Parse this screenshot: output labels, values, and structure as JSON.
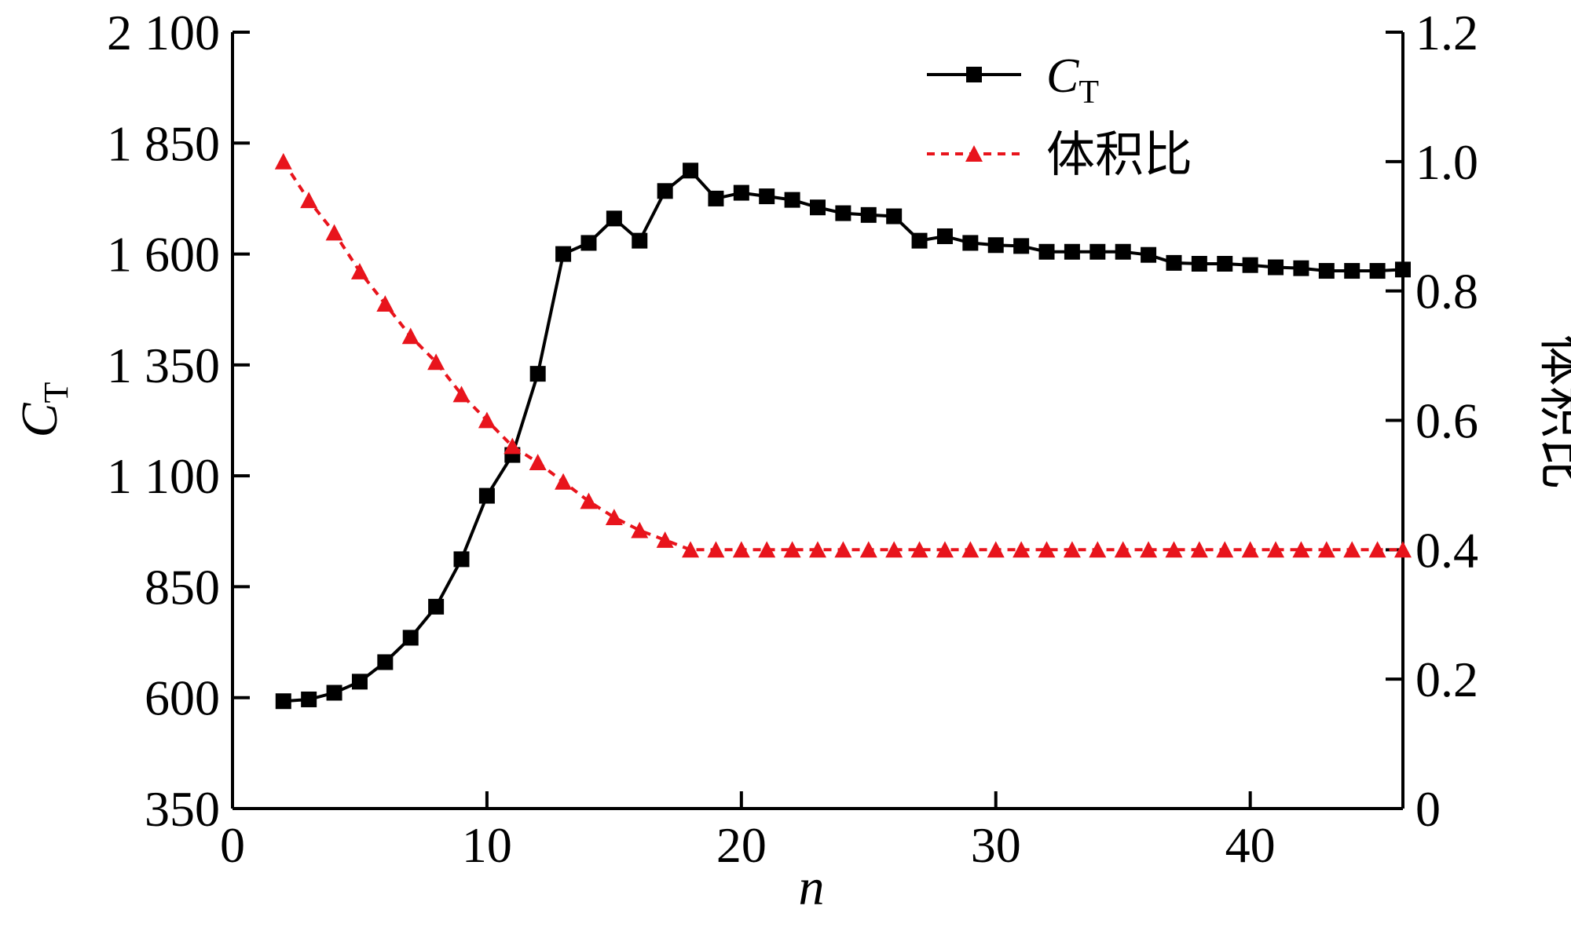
{
  "chart_data": {
    "type": "line",
    "xlabel": "n",
    "xlim": [
      0,
      46
    ],
    "xticks": [
      "0",
      "10",
      "20",
      "30",
      "40"
    ],
    "y_left": {
      "label_main": "C",
      "label_sub": "T",
      "ylim": [
        350,
        2100
      ],
      "ticks": [
        "350",
        "600",
        "850",
        "1 100",
        "1 350",
        "1 600",
        "1 850",
        "2 100"
      ]
    },
    "y_right": {
      "label": "体积比",
      "ylim": [
        0,
        1.2
      ],
      "ticks": [
        "0",
        "0.2",
        "0.4",
        "0.6",
        "0.8",
        "1.0",
        "1.2"
      ]
    },
    "legend_position": "top-right",
    "series": [
      {
        "legend_main": "C",
        "legend_sub": "T",
        "axis": "left",
        "color": "#000000",
        "marker": "square",
        "line": "solid",
        "x": [
          2,
          3,
          4,
          5,
          6,
          7,
          8,
          9,
          10,
          11,
          12,
          13,
          14,
          15,
          16,
          17,
          18,
          19,
          20,
          21,
          22,
          23,
          24,
          25,
          26,
          27,
          28,
          29,
          30,
          31,
          32,
          33,
          34,
          35,
          36,
          37,
          38,
          39,
          40,
          41,
          42,
          43,
          44,
          45,
          46
        ],
        "values": [
          592,
          596,
          611,
          636,
          680,
          735,
          805,
          912,
          1055,
          1147,
          1330,
          1600,
          1625,
          1680,
          1630,
          1742,
          1788,
          1725,
          1738,
          1730,
          1722,
          1705,
          1692,
          1688,
          1685,
          1630,
          1640,
          1625,
          1620,
          1618,
          1605,
          1605,
          1605,
          1605,
          1598,
          1580,
          1578,
          1578,
          1575,
          1570,
          1568,
          1562,
          1562,
          1562,
          1565
        ]
      },
      {
        "legend": "体积比",
        "axis": "right",
        "color": "#e8141c",
        "marker": "triangle",
        "line": "dashed",
        "x": [
          2,
          3,
          4,
          5,
          6,
          7,
          8,
          9,
          10,
          11,
          12,
          13,
          14,
          15,
          16,
          17,
          18,
          19,
          20,
          21,
          22,
          23,
          24,
          25,
          26,
          27,
          28,
          29,
          30,
          31,
          32,
          33,
          34,
          35,
          36,
          37,
          38,
          39,
          40,
          41,
          42,
          43,
          44,
          45,
          46
        ],
        "values": [
          1.0,
          0.94,
          0.89,
          0.83,
          0.78,
          0.73,
          0.69,
          0.64,
          0.6,
          0.56,
          0.535,
          0.505,
          0.475,
          0.45,
          0.43,
          0.415,
          0.4,
          0.4,
          0.4,
          0.4,
          0.4,
          0.4,
          0.4,
          0.4,
          0.4,
          0.4,
          0.4,
          0.4,
          0.4,
          0.4,
          0.4,
          0.4,
          0.4,
          0.4,
          0.4,
          0.4,
          0.4,
          0.4,
          0.4,
          0.4,
          0.4,
          0.4,
          0.4,
          0.4,
          0.4
        ]
      }
    ]
  }
}
